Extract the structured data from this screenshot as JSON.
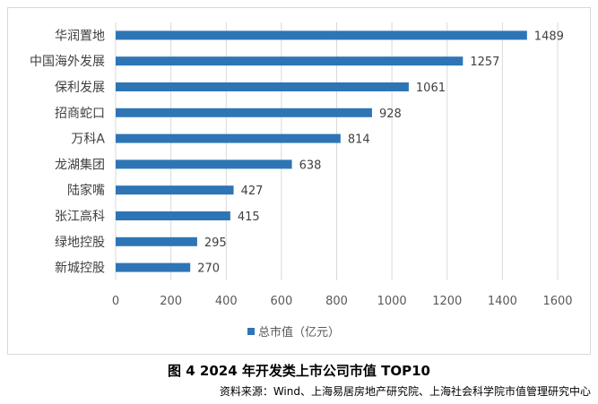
{
  "caption": "图 4   2024 年开发类上市公司市值 TOP10",
  "source": "资料来源：Wind、上海易居房地产研究院、上海社会科学院市值管理研究中心",
  "chart_data": {
    "type": "bar",
    "orientation": "horizontal",
    "categories": [
      "华润置地",
      "中国海外发展",
      "保利发展",
      "招商蛇口",
      "万科A",
      "龙湖集团",
      "陆家嘴",
      "张江高科",
      "绿地控股",
      "新城控股"
    ],
    "series": [
      {
        "name": "总市值（亿元）",
        "values": [
          1489,
          1257,
          1061,
          928,
          814,
          638,
          427,
          415,
          295,
          270
        ],
        "color": "#2e75b6"
      }
    ],
    "xlim": [
      0,
      1600
    ],
    "xticks": [
      0,
      200,
      400,
      600,
      800,
      1000,
      1200,
      1400,
      1600
    ],
    "grid": "vertical",
    "legend_position": "bottom-left"
  }
}
